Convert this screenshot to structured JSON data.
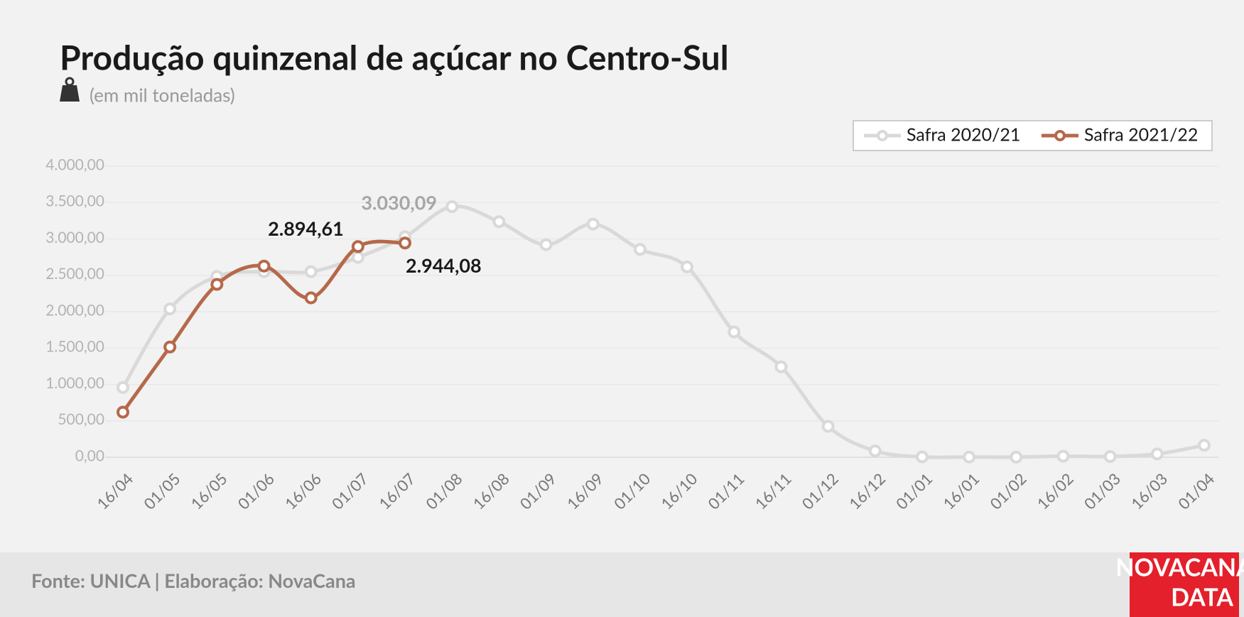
{
  "chart_data": {
    "type": "line",
    "title": "Produção quinzenal de açúcar no Centro-Sul",
    "subtitle": "(em mil toneladas)",
    "source": "Fonte: UNICA | Elaboração: NovaCana",
    "logo": [
      "NOVACANA",
      "DATA"
    ],
    "categories": [
      "16/04",
      "01/05",
      "16/05",
      "01/06",
      "16/06",
      "01/07",
      "16/07",
      "01/08",
      "16/08",
      "01/09",
      "16/09",
      "01/10",
      "16/10",
      "01/11",
      "16/11",
      "01/12",
      "16/12",
      "01/01",
      "16/01",
      "01/02",
      "16/02",
      "01/03",
      "16/03",
      "01/04"
    ],
    "series": [
      {
        "name": "Safra 2020/21",
        "color": "#d9d9d9",
        "label_color": "#a6a6a6",
        "values": [
          959,
          2038,
          2485,
          2550,
          2550,
          2747,
          3030.09,
          3444,
          3237,
          2921,
          3204,
          2856,
          2616,
          1722,
          1243,
          425,
          87,
          5,
          3,
          2,
          15,
          10,
          45,
          165
        ],
        "value_labels": [
          null,
          null,
          null,
          null,
          null,
          null,
          "3.030,09",
          null,
          null,
          null,
          null,
          null,
          null,
          null,
          null,
          null,
          null,
          null,
          null,
          null,
          null,
          null,
          null,
          null
        ]
      },
      {
        "name": "Safra 2021/22",
        "color": "#b5694a",
        "label_color": "#1a1a1a",
        "values": [
          620,
          1515,
          2376,
          2627,
          2190,
          2894.61,
          2944.08,
          null,
          null,
          null,
          null,
          null,
          null,
          null,
          null,
          null,
          null,
          null,
          null,
          null,
          null,
          null,
          null,
          null
        ],
        "value_labels": [
          null,
          null,
          null,
          null,
          null,
          "2.894,61",
          "2.944,08",
          null,
          null,
          null,
          null,
          null,
          null,
          null,
          null,
          null,
          null,
          null,
          null,
          null,
          null,
          null,
          null,
          null
        ]
      }
    ],
    "ylim": [
      0,
      4000
    ],
    "yticks": [
      {
        "value": 0,
        "label": "0,00"
      },
      {
        "value": 500,
        "label": "500,00"
      },
      {
        "value": 1000,
        "label": "1.000,00"
      },
      {
        "value": 1500,
        "label": "1.500,00"
      },
      {
        "value": 2000,
        "label": "2.000,00"
      },
      {
        "value": 2500,
        "label": "2.500,00"
      },
      {
        "value": 3000,
        "label": "3.000,00"
      },
      {
        "value": 3500,
        "label": "3.500,00"
      },
      {
        "value": 4000,
        "label": "4.000,00"
      }
    ],
    "grid": true,
    "legend": "top-right"
  }
}
